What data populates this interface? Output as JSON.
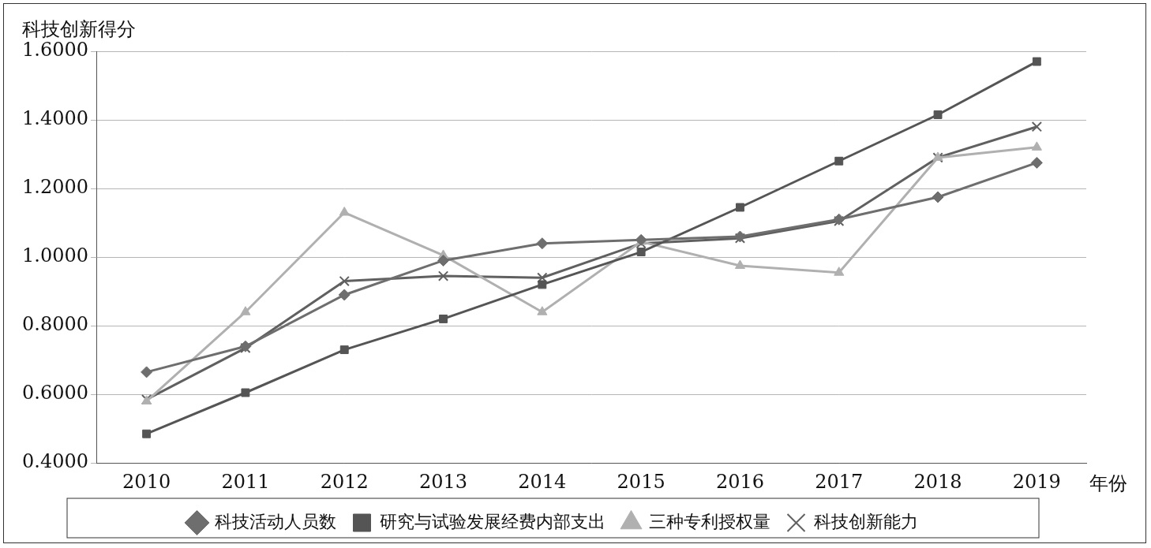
{
  "chart_data": {
    "type": "line",
    "y_label": "科技创新得分",
    "x_label": "年份",
    "categories": [
      "2010",
      "2011",
      "2012",
      "2013",
      "2014",
      "2015",
      "2016",
      "2017",
      "2018",
      "2019"
    ],
    "series": [
      {
        "name": "科技活动人员数",
        "color": "#6e6e6e",
        "marker": "diamond",
        "values": [
          0.665,
          0.74,
          0.89,
          0.99,
          1.04,
          1.05,
          1.06,
          1.11,
          1.175,
          1.275
        ]
      },
      {
        "name": "研究与试验发展经费内部支出",
        "color": "#555555",
        "marker": "square",
        "values": [
          0.485,
          0.605,
          0.73,
          0.82,
          0.92,
          1.015,
          1.145,
          1.28,
          1.415,
          1.57
        ]
      },
      {
        "name": "三种专利授权量",
        "color": "#b0b0b0",
        "marker": "triangle",
        "values": [
          0.58,
          0.84,
          1.13,
          1.005,
          0.84,
          1.045,
          0.975,
          0.955,
          1.29,
          1.32
        ]
      },
      {
        "name": "科技创新能力",
        "color": "#606060",
        "marker": "cross",
        "values": [
          0.585,
          0.735,
          0.93,
          0.945,
          0.94,
          1.04,
          1.055,
          1.105,
          1.29,
          1.38
        ]
      }
    ],
    "ylim": [
      0.4,
      1.6
    ],
    "yticks": [
      {
        "value": 0.4,
        "label": "0.4000"
      },
      {
        "value": 0.6,
        "label": "0.6000"
      },
      {
        "value": 0.8,
        "label": "0.8000"
      },
      {
        "value": 1.0,
        "label": "1.0000"
      },
      {
        "value": 1.2,
        "label": "1.2000"
      },
      {
        "value": 1.4,
        "label": "1.4000"
      },
      {
        "value": 1.6,
        "label": "1.6000"
      }
    ],
    "grid": true,
    "legend": "bottom"
  }
}
